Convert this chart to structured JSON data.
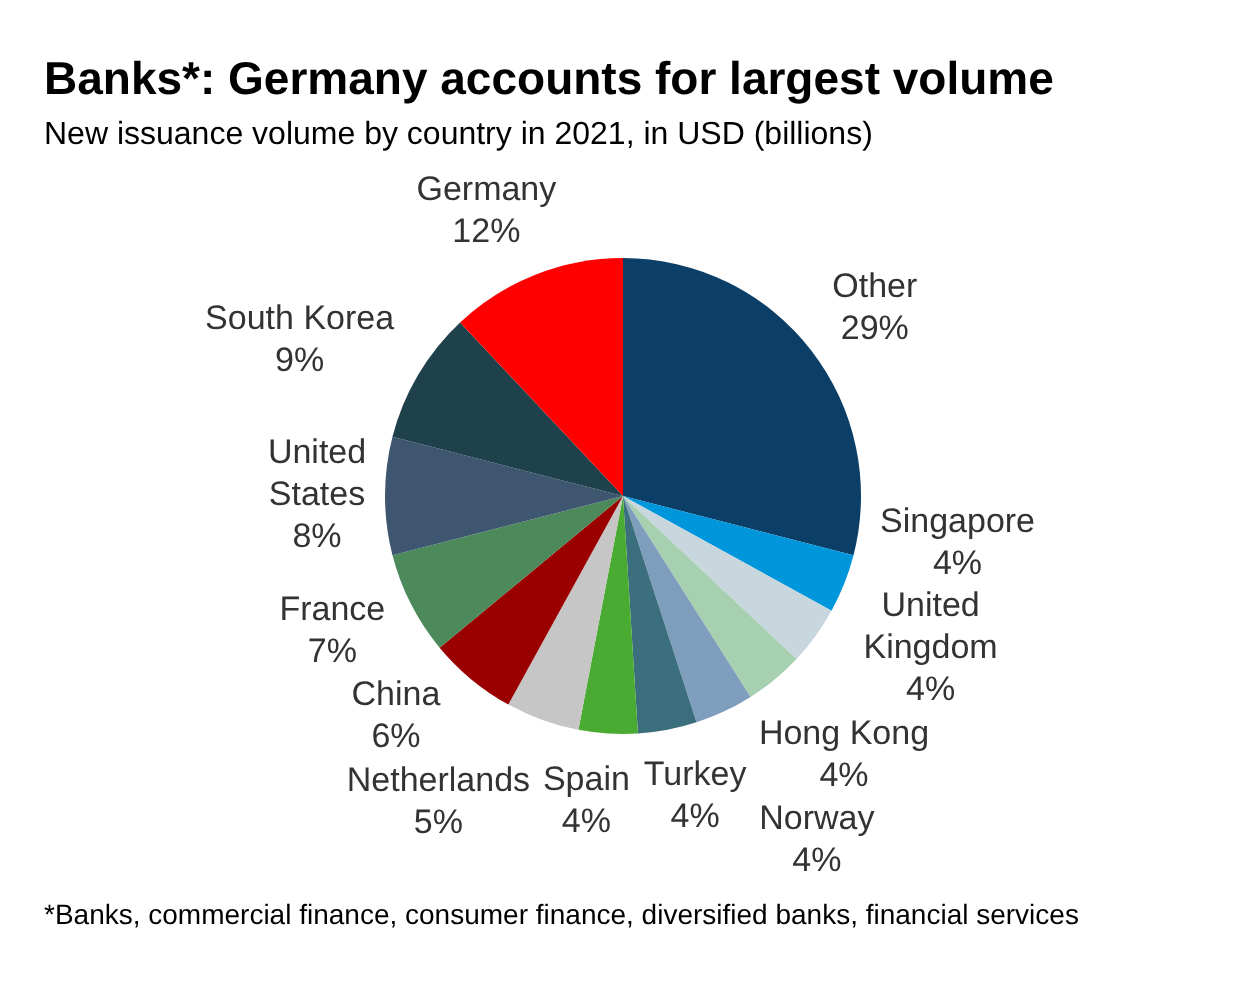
{
  "chart_data": {
    "type": "pie",
    "title": "Banks*: Germany accounts for largest volume",
    "subtitle": "New issuance volume by country in 2021, in USD (billions)",
    "categories": [
      "Other",
      "Singapore",
      "United Kingdom",
      "Hong Kong",
      "Norway",
      "Turkey",
      "Spain",
      "Netherlands",
      "China",
      "France",
      "United States",
      "South Korea",
      "Germany"
    ],
    "values": [
      29,
      4,
      4,
      4,
      4,
      4,
      4,
      5,
      6,
      7,
      8,
      9,
      12
    ],
    "colors": [
      "#0b3f68",
      "#0096dc",
      "#c8d6de",
      "#a7d0b0",
      "#7f9dbd",
      "#3b6f7d",
      "#4aab32",
      "#c6c6c6",
      "#9a0000",
      "#4c8a5c",
      "#3f5670",
      "#1f414b",
      "#ff0000"
    ],
    "value_labels": [
      "29%",
      "4%",
      "4%",
      "4%",
      "4%",
      "4%",
      "4%",
      "5%",
      "6%",
      "7%",
      "8%",
      "9%",
      "12%"
    ],
    "legend": false,
    "annotations": [
      "*Banks, commercial finance, consumer finance, diversified banks, financial services"
    ]
  }
}
